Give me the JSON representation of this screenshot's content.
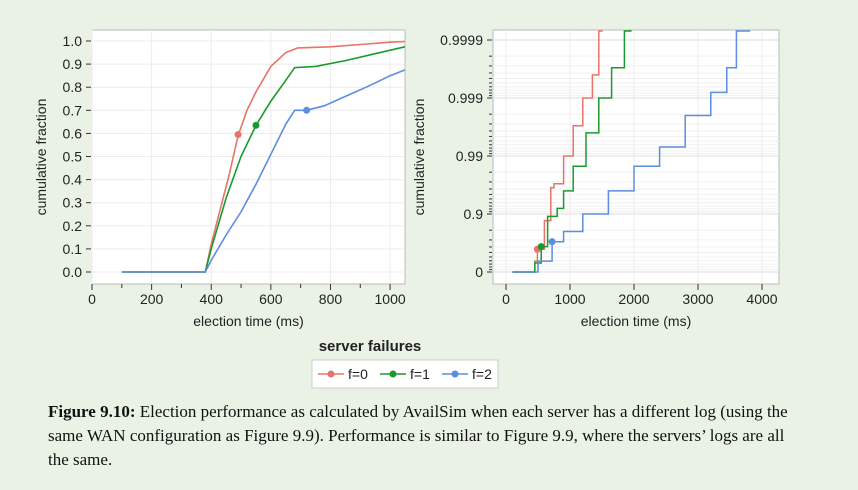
{
  "chart_data": [
    {
      "type": "line",
      "xlabel": "election time (ms)",
      "ylabel": "cumulative fraction",
      "xlim": [
        0,
        1050
      ],
      "ylim": [
        0,
        1.0
      ],
      "xticks": [
        "0",
        "200",
        "400",
        "600",
        "800",
        "1000"
      ],
      "xtick_values": [
        0,
        200,
        400,
        600,
        800,
        1000
      ],
      "yticks": [
        "0.0",
        "0.1",
        "0.2",
        "0.3",
        "0.4",
        "0.5",
        "0.6",
        "0.7",
        "0.8",
        "0.9",
        "1.0"
      ],
      "ytick_values": [
        0,
        0.1,
        0.2,
        0.3,
        0.4,
        0.5,
        0.6,
        0.7,
        0.8,
        0.9,
        1.0
      ],
      "grid": true,
      "series": [
        {
          "name": "f=0",
          "color": "#e8736a",
          "x": [
            100,
            380,
            400,
            430,
            460,
            490,
            520,
            550,
            600,
            650,
            690,
            800,
            900,
            1000,
            1050
          ],
          "y": [
            0,
            0,
            0.12,
            0.27,
            0.42,
            0.59,
            0.7,
            0.78,
            0.89,
            0.95,
            0.97,
            0.975,
            0.985,
            0.995,
            0.998
          ],
          "marker": [
            490,
            0.595
          ]
        },
        {
          "name": "f=1",
          "color": "#1a9a2e",
          "x": [
            100,
            380,
            400,
            450,
            500,
            550,
            600,
            650,
            680,
            750,
            850,
            950,
            1050
          ],
          "y": [
            0,
            0,
            0.1,
            0.32,
            0.5,
            0.635,
            0.74,
            0.83,
            0.885,
            0.89,
            0.915,
            0.945,
            0.975
          ],
          "marker": [
            550,
            0.635
          ]
        },
        {
          "name": "f=2",
          "color": "#5b8de0",
          "x": [
            100,
            380,
            400,
            450,
            500,
            550,
            600,
            650,
            680,
            720,
            780,
            850,
            920,
            1000,
            1050
          ],
          "y": [
            0,
            0,
            0.05,
            0.16,
            0.26,
            0.38,
            0.51,
            0.64,
            0.7,
            0.7,
            0.72,
            0.76,
            0.8,
            0.85,
            0.875
          ],
          "marker": [
            720,
            0.7
          ]
        }
      ]
    },
    {
      "type": "line",
      "xlabel": "election time (ms)",
      "ylabel": "cumulative fraction",
      "xlim": [
        0,
        4200
      ],
      "yscale": "log-complement",
      "ylim": [
        0,
        0.99995
      ],
      "xticks": [
        "0",
        "1000",
        "2000",
        "3000",
        "4000"
      ],
      "xtick_values": [
        0,
        1000,
        2000,
        3000,
        4000
      ],
      "yticks": [
        "0",
        "0.9",
        "0.99",
        "0.999",
        "0.9999"
      ],
      "ytick_values": [
        0,
        0.9,
        0.99,
        0.999,
        0.9999
      ],
      "grid": true,
      "series": [
        {
          "name": "f=0",
          "color": "#e8736a",
          "x": [
            100,
            380,
            450,
            490,
            600,
            700,
            750,
            900,
            1050,
            1200,
            1350,
            1450,
            1500
          ],
          "y": [
            0,
            0,
            0.35,
            0.595,
            0.87,
            0.965,
            0.97,
            0.99,
            0.997,
            0.999,
            0.9996,
            0.99993,
            1.0
          ]
        },
        {
          "name": "f=1",
          "color": "#1a9a2e",
          "x": [
            100,
            380,
            450,
            550,
            650,
            800,
            900,
            1050,
            1250,
            1450,
            1650,
            1850,
            1950,
            2000
          ],
          "y": [
            0,
            0,
            0.3,
            0.635,
            0.89,
            0.92,
            0.96,
            0.985,
            0.996,
            0.999,
            0.9997,
            0.99993,
            0.99996,
            1.0
          ]
        },
        {
          "name": "f=2",
          "color": "#5b8de0",
          "x": [
            100,
            380,
            500,
            720,
            900,
            1200,
            1600,
            2000,
            2400,
            2800,
            3200,
            3450,
            3600,
            3750,
            3800
          ],
          "y": [
            0,
            0,
            0.35,
            0.7,
            0.8,
            0.9,
            0.96,
            0.985,
            0.993,
            0.998,
            0.9992,
            0.9997,
            0.99993,
            0.99993,
            1.0
          ]
        }
      ]
    }
  ],
  "legend": {
    "title": "server failures",
    "items": [
      {
        "label": "f=0",
        "color": "#e8736a"
      },
      {
        "label": "f=1",
        "color": "#1a9a2e"
      },
      {
        "label": "f=2",
        "color": "#5b8de0"
      }
    ]
  },
  "caption": {
    "label": "Figure 9.10:",
    "text": " Election performance as calculated by AvailSim when each server has a different log (using the same WAN configuration as Figure 9.9). Performance is similar to Figure 9.9, where the servers’ logs are all the same."
  }
}
